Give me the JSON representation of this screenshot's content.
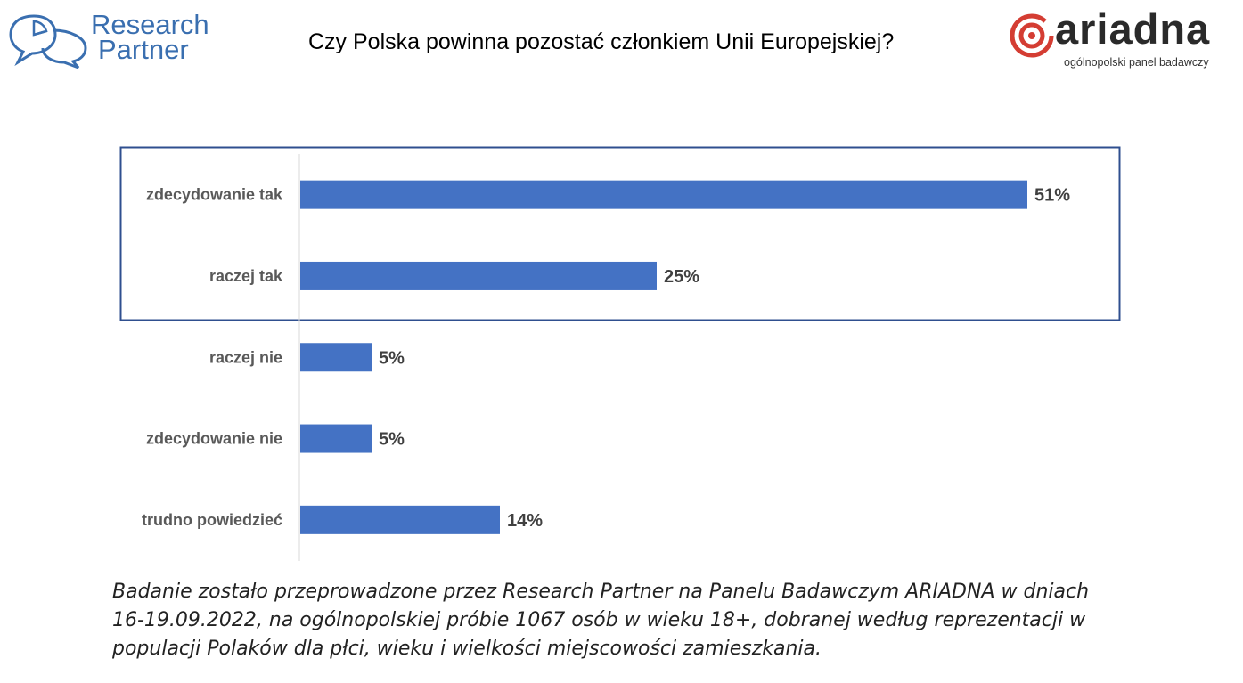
{
  "header": {
    "logo_left_line1": "Research",
    "logo_left_line2": "Partner",
    "title": "Czy Polska powinna pozostać członkiem Unii Europejskiej?",
    "logo_right_word": "ariadna",
    "logo_right_tagline": "ogólnopolski panel badawczy"
  },
  "colors": {
    "bar": "#4472c4",
    "frame": "#2f4f8f",
    "brand_left": "#3a6fb0",
    "brand_right": "#d43d33"
  },
  "chart_data": {
    "type": "bar",
    "orientation": "horizontal",
    "title": "Czy Polska powinna pozostać członkiem Unii Europejskiej?",
    "xlabel": "",
    "ylabel": "",
    "categories": [
      "zdecydowanie tak",
      "raczej tak",
      "raczej nie",
      "zdecydowanie nie",
      "trudno powiedzieć"
    ],
    "values": [
      51,
      25,
      5,
      5,
      14
    ],
    "value_labels": [
      "51%",
      "25%",
      "5%",
      "5%",
      "14%"
    ],
    "unit": "%",
    "xlim": [
      0,
      51
    ],
    "grid": false,
    "legend": "none",
    "highlight_box_categories": [
      "zdecydowanie tak",
      "raczej tak"
    ]
  },
  "caption": {
    "line1": "Badanie zostało przeprowadzone przez Research Partner na Panelu Badawczym ARIADNA w dniach",
    "line2": "16-19.09.2022, na ogólnopolskiej próbie 1067 osób w wieku 18+, dobranej według reprezentacji w",
    "line3": "populacji Polaków dla płci, wieku i wielkości miejscowości zamieszkania."
  }
}
